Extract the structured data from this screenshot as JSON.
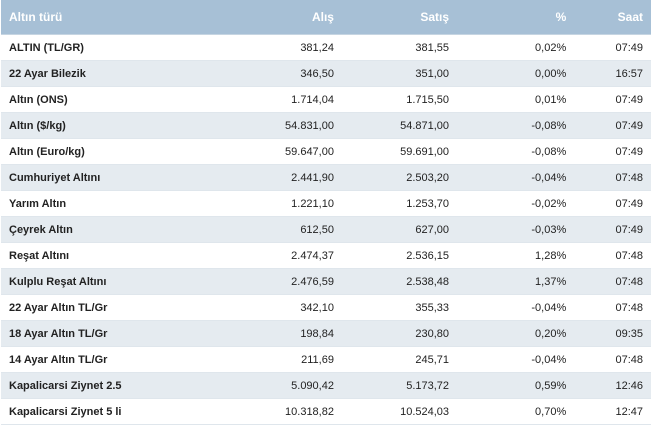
{
  "table": {
    "headers": [
      "Altın türü",
      "Alış",
      "Satış",
      "%",
      "Saat"
    ],
    "rows": [
      [
        "ALTIN (TL/GR)",
        "381,24",
        "381,55",
        "0,02%",
        "07:49"
      ],
      [
        "22 Ayar Bilezik",
        "346,50",
        "351,00",
        "0,00%",
        "16:57"
      ],
      [
        "Altın (ONS)",
        "1.714,04",
        "1.715,50",
        "0,01%",
        "07:49"
      ],
      [
        "Altın ($/kg)",
        "54.831,00",
        "54.871,00",
        "-0,08%",
        "07:49"
      ],
      [
        "Altın (Euro/kg)",
        "59.647,00",
        "59.691,00",
        "-0,08%",
        "07:49"
      ],
      [
        "Cumhuriyet Altını",
        "2.441,90",
        "2.503,20",
        "-0,04%",
        "07:48"
      ],
      [
        "Yarım Altın",
        "1.221,10",
        "1.253,70",
        "-0,02%",
        "07:49"
      ],
      [
        "Çeyrek Altın",
        "612,50",
        "627,00",
        "-0,03%",
        "07:49"
      ],
      [
        "Reşat Altını",
        "2.474,37",
        "2.536,15",
        "1,28%",
        "07:48"
      ],
      [
        "Kulplu Reşat Altını",
        "2.476,59",
        "2.538,48",
        "1,37%",
        "07:48"
      ],
      [
        "22 Ayar Altın TL/Gr",
        "342,10",
        "355,33",
        "-0,04%",
        "07:48"
      ],
      [
        "18 Ayar Altın TL/Gr",
        "198,84",
        "230,80",
        "0,20%",
        "09:35"
      ],
      [
        "14 Ayar Altın TL/Gr",
        "211,69",
        "245,71",
        "-0,04%",
        "07:48"
      ],
      [
        "Kapalicarsi Ziynet 2.5",
        "5.090,42",
        "5.173,72",
        "0,59%",
        "12:46"
      ],
      [
        "Kapalicarsi Ziynet 5 li",
        "10.318,82",
        "10.524,03",
        "0,70%",
        "12:47"
      ]
    ]
  },
  "colors": {
    "header_bg": "#a7c0d6",
    "header_text": "#ffffff",
    "row_alt_bg": "#e5ebf0",
    "row_bg": "#ffffff"
  }
}
